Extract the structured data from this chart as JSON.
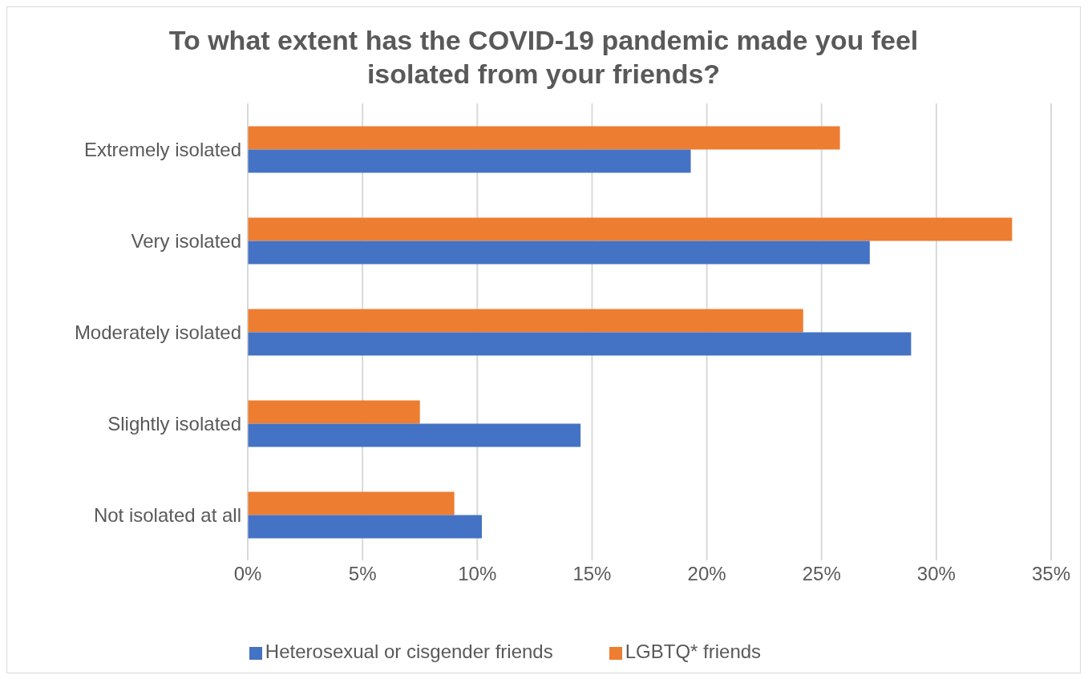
{
  "chart_data": {
    "type": "bar",
    "orientation": "horizontal",
    "title": "To what extent has the COVID-19 pandemic made you feel isolated from your friends?",
    "categories": [
      "Extremely isolated",
      "Very isolated",
      "Moderately isolated",
      "Slightly isolated",
      "Not isolated at all"
    ],
    "series": [
      {
        "name": "LGBTQ* friends",
        "color": "#ed7d31",
        "values": [
          25.8,
          33.3,
          24.2,
          7.5,
          9.0
        ]
      },
      {
        "name": "Heterosexual or cisgender friends",
        "color": "#4472c4",
        "values": [
          19.3,
          27.1,
          28.9,
          14.5,
          10.2
        ]
      }
    ],
    "xlim": [
      0,
      35
    ],
    "xticks": [
      {
        "value": 0,
        "label": "0%"
      },
      {
        "value": 5,
        "label": "5%"
      },
      {
        "value": 10,
        "label": "10%"
      },
      {
        "value": 15,
        "label": "15%"
      },
      {
        "value": 20,
        "label": "20%"
      },
      {
        "value": 25,
        "label": "25%"
      },
      {
        "value": 30,
        "label": "30%"
      },
      {
        "value": 35,
        "label": "35%"
      }
    ],
    "grid": "x",
    "legend": "bottom"
  }
}
